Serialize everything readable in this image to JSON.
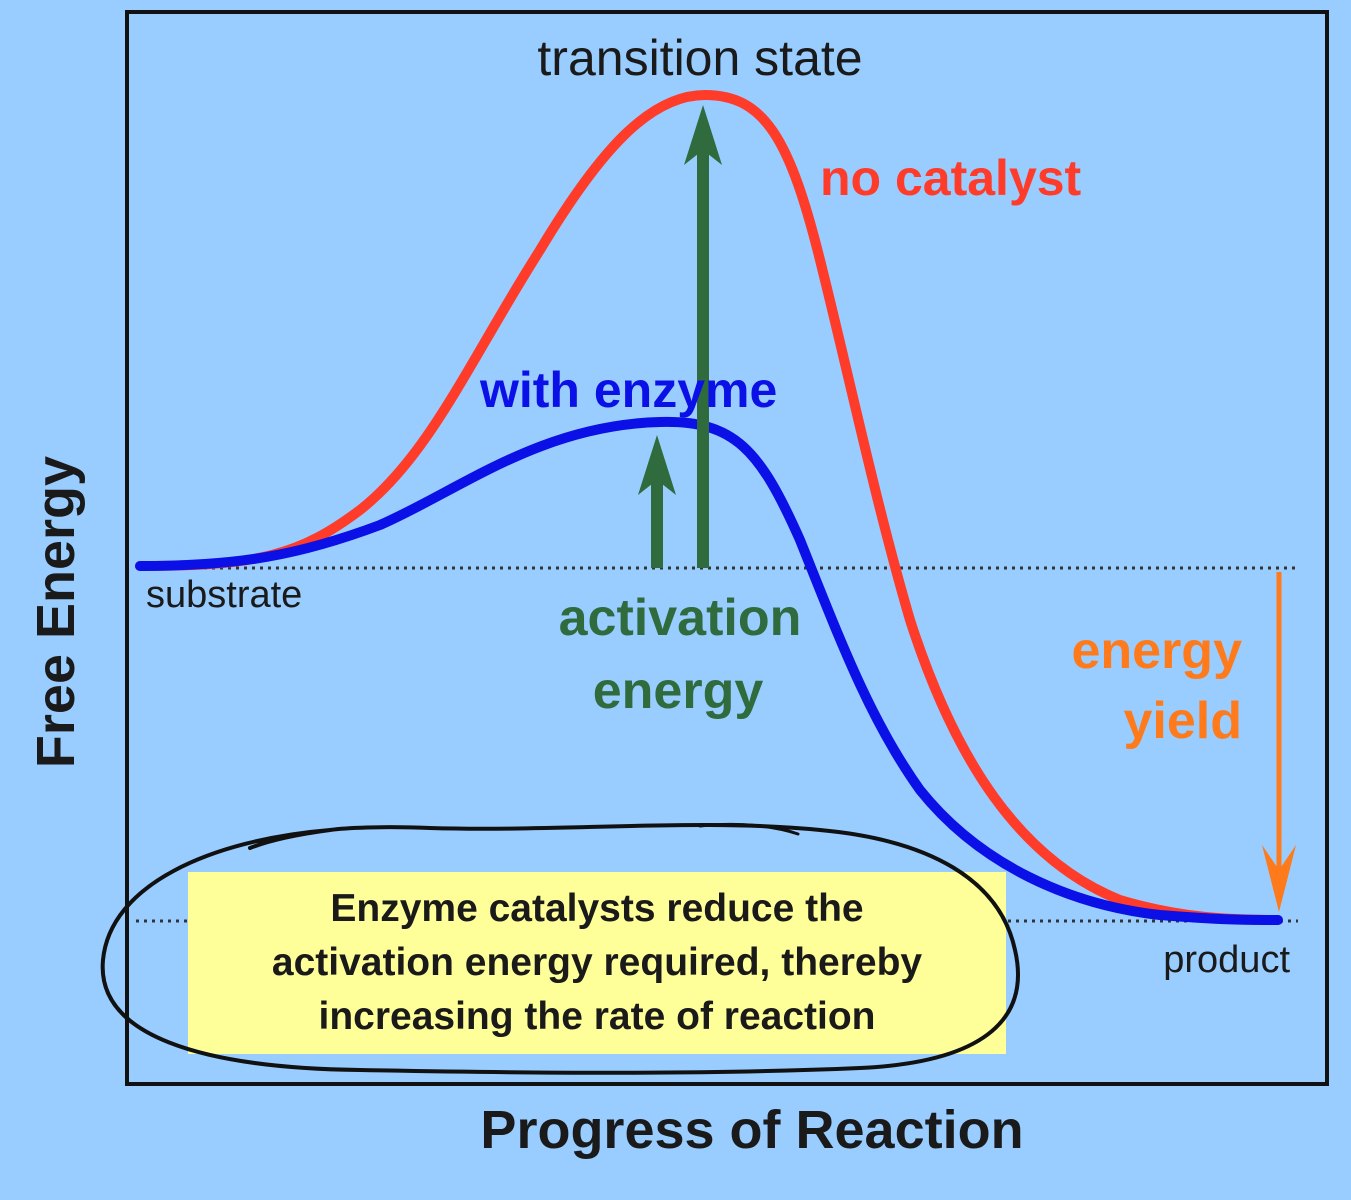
{
  "labels": {
    "transition_state": "transition state",
    "no_catalyst": "no catalyst",
    "with_enzyme": "with enzyme",
    "substrate": "substrate",
    "activation_energy_line1": "activation",
    "activation_energy_line2": "energy",
    "energy_yield_line1": "energy",
    "energy_yield_line2": "yield",
    "product": "product",
    "y_axis": "Free Energy",
    "x_axis": "Progress of Reaction"
  },
  "note": {
    "line1": "Enzyme catalysts reduce the",
    "line2": "activation energy required, thereby",
    "line3": "increasing the rate of reaction"
  },
  "colors": {
    "background": "#99ccff",
    "no_catalyst_curve": "#ff3b2a",
    "enzyme_curve": "#0a10e6",
    "activation_arrow": "#2f6b3c",
    "energy_yield_arrow": "#ff7a1a",
    "note_box": "#ffff99"
  }
}
